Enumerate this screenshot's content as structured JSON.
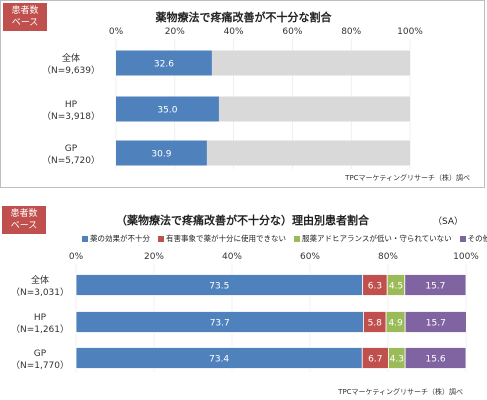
{
  "chart_data": [
    {
      "type": "bar",
      "badge": [
        "患者数",
        "ベース"
      ],
      "title": "薬物療法で疼痛改善が不十分な割合",
      "source": "TPCマーケティングリサーチ（株）調べ",
      "xlim": [
        0,
        100
      ],
      "ticks": [
        "0%",
        "20%",
        "40%",
        "60%",
        "80%",
        "100%"
      ],
      "categories": [
        [
          "全体",
          "（N=9,639）"
        ],
        [
          "HP",
          "（N=3,918）"
        ],
        [
          "GP",
          "（N=5,720）"
        ]
      ],
      "series": [
        {
          "values": [
            32.6,
            35.0,
            30.9
          ]
        }
      ],
      "value_labels": [
        "32.6",
        "35.0",
        "30.9"
      ],
      "colors": {
        "bar": "#4f81bd",
        "remainder": "#d9d9d9"
      }
    },
    {
      "type": "bar",
      "stacked": true,
      "badge": [
        "患者数",
        "ベース"
      ],
      "title": "（薬物療法で疼痛改善が不十分な）理由別患者割合",
      "note": "（SA）",
      "source": "TPCマーケティングリサーチ（株）調べ",
      "xlim": [
        0,
        100
      ],
      "ticks": [
        "0%",
        "20%",
        "40%",
        "60%",
        "80%",
        "100%"
      ],
      "categories": [
        [
          "全体",
          "（N=3,031）"
        ],
        [
          "HP",
          "（N=1,261）"
        ],
        [
          "GP",
          "（N=1,770）"
        ]
      ],
      "series": [
        {
          "name": "薬の効果が不十分",
          "values": [
            73.5,
            73.7,
            73.4
          ],
          "labels": [
            "73.5",
            "73.7",
            "73.4"
          ],
          "color": "#4f81bd"
        },
        {
          "name": "有害事象で薬が十分に使用できない",
          "values": [
            6.3,
            5.8,
            6.7
          ],
          "labels": [
            "6.3",
            "5.8",
            "6.7"
          ],
          "color": "#c0504d"
        },
        {
          "name": "服薬アドヒアランスが低い・守られていない",
          "values": [
            4.5,
            4.9,
            4.3
          ],
          "labels": [
            "4.5",
            "4.9",
            "4.3"
          ],
          "color": "#9bbb59"
        },
        {
          "name": "その他",
          "values": [
            15.7,
            15.7,
            15.6
          ],
          "labels": [
            "15.7",
            "15.7",
            "15.6"
          ],
          "color": "#8064a2"
        }
      ]
    }
  ]
}
